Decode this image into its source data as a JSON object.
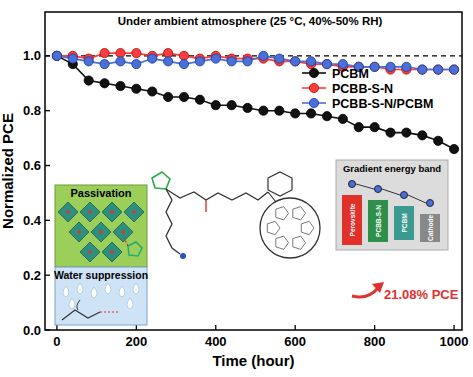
{
  "chart_data": {
    "type": "line",
    "title": "Under ambient atmosphere (25 °C, 40%-50% RH)",
    "x_label": "Time (hour)",
    "y_label": "Normalized PCE",
    "x": [
      0,
      40,
      80,
      120,
      160,
      200,
      240,
      280,
      320,
      360,
      400,
      440,
      480,
      520,
      560,
      600,
      640,
      680,
      720,
      760,
      800,
      840,
      880,
      920,
      960,
      1000
    ],
    "series": [
      {
        "name": "PCBM",
        "color": "#111111",
        "marker": "circle",
        "values": [
          1.0,
          0.97,
          0.91,
          0.9,
          0.89,
          0.88,
          0.87,
          0.85,
          0.85,
          0.84,
          0.82,
          0.82,
          0.81,
          0.8,
          0.8,
          0.79,
          0.79,
          0.78,
          0.77,
          0.74,
          0.74,
          0.72,
          0.72,
          0.71,
          0.69,
          0.66
        ]
      },
      {
        "name": "PCBB-S-N",
        "color": "#ff3b3b",
        "marker": "circle",
        "values": [
          1.0,
          1.0,
          0.99,
          1.01,
          1.01,
          1.01,
          1.0,
          1.01,
          1.0,
          0.99,
          1.0,
          0.99,
          0.99,
          0.99,
          0.98,
          0.98,
          0.97,
          0.97,
          0.96,
          0.96,
          0.96,
          0.95,
          0.95,
          0.95,
          0.95,
          0.95
        ]
      },
      {
        "name": "PCBB-S-N/PCBM",
        "color": "#4a6fd8",
        "marker": "circle",
        "values": [
          1.0,
          0.99,
          0.98,
          0.97,
          0.98,
          0.97,
          0.99,
          0.98,
          0.97,
          0.98,
          0.99,
          0.98,
          0.98,
          1.0,
          0.99,
          0.98,
          0.98,
          0.97,
          0.97,
          0.96,
          0.96,
          0.96,
          0.96,
          0.95,
          0.95,
          0.95
        ]
      }
    ],
    "reference_line": 1.0,
    "xlim": [
      -30,
      1020
    ],
    "xticks": [
      0,
      200,
      400,
      600,
      800,
      1000
    ],
    "ylim": [
      0,
      1.16
    ],
    "yticks": [
      {
        "value": 0,
        "label": "0.0"
      },
      {
        "value": 0.2,
        "label": "0.2"
      },
      {
        "value": 0.4,
        "label": "0.4"
      },
      {
        "value": 0.6,
        "label": "0.6"
      },
      {
        "value": 0.8,
        "label": "0.8"
      },
      {
        "value": 1.0,
        "label": "1.0"
      }
    ],
    "grid": false,
    "legend": "upper right",
    "annotations": {
      "passivation": "Passivation",
      "water": "Water suppression",
      "band_title": "Gradient energy band",
      "band_layers": [
        "Perovskite",
        "PCBB-S-N",
        "PCBM",
        "Cathode"
      ],
      "pce": "21.08% PCE"
    }
  }
}
